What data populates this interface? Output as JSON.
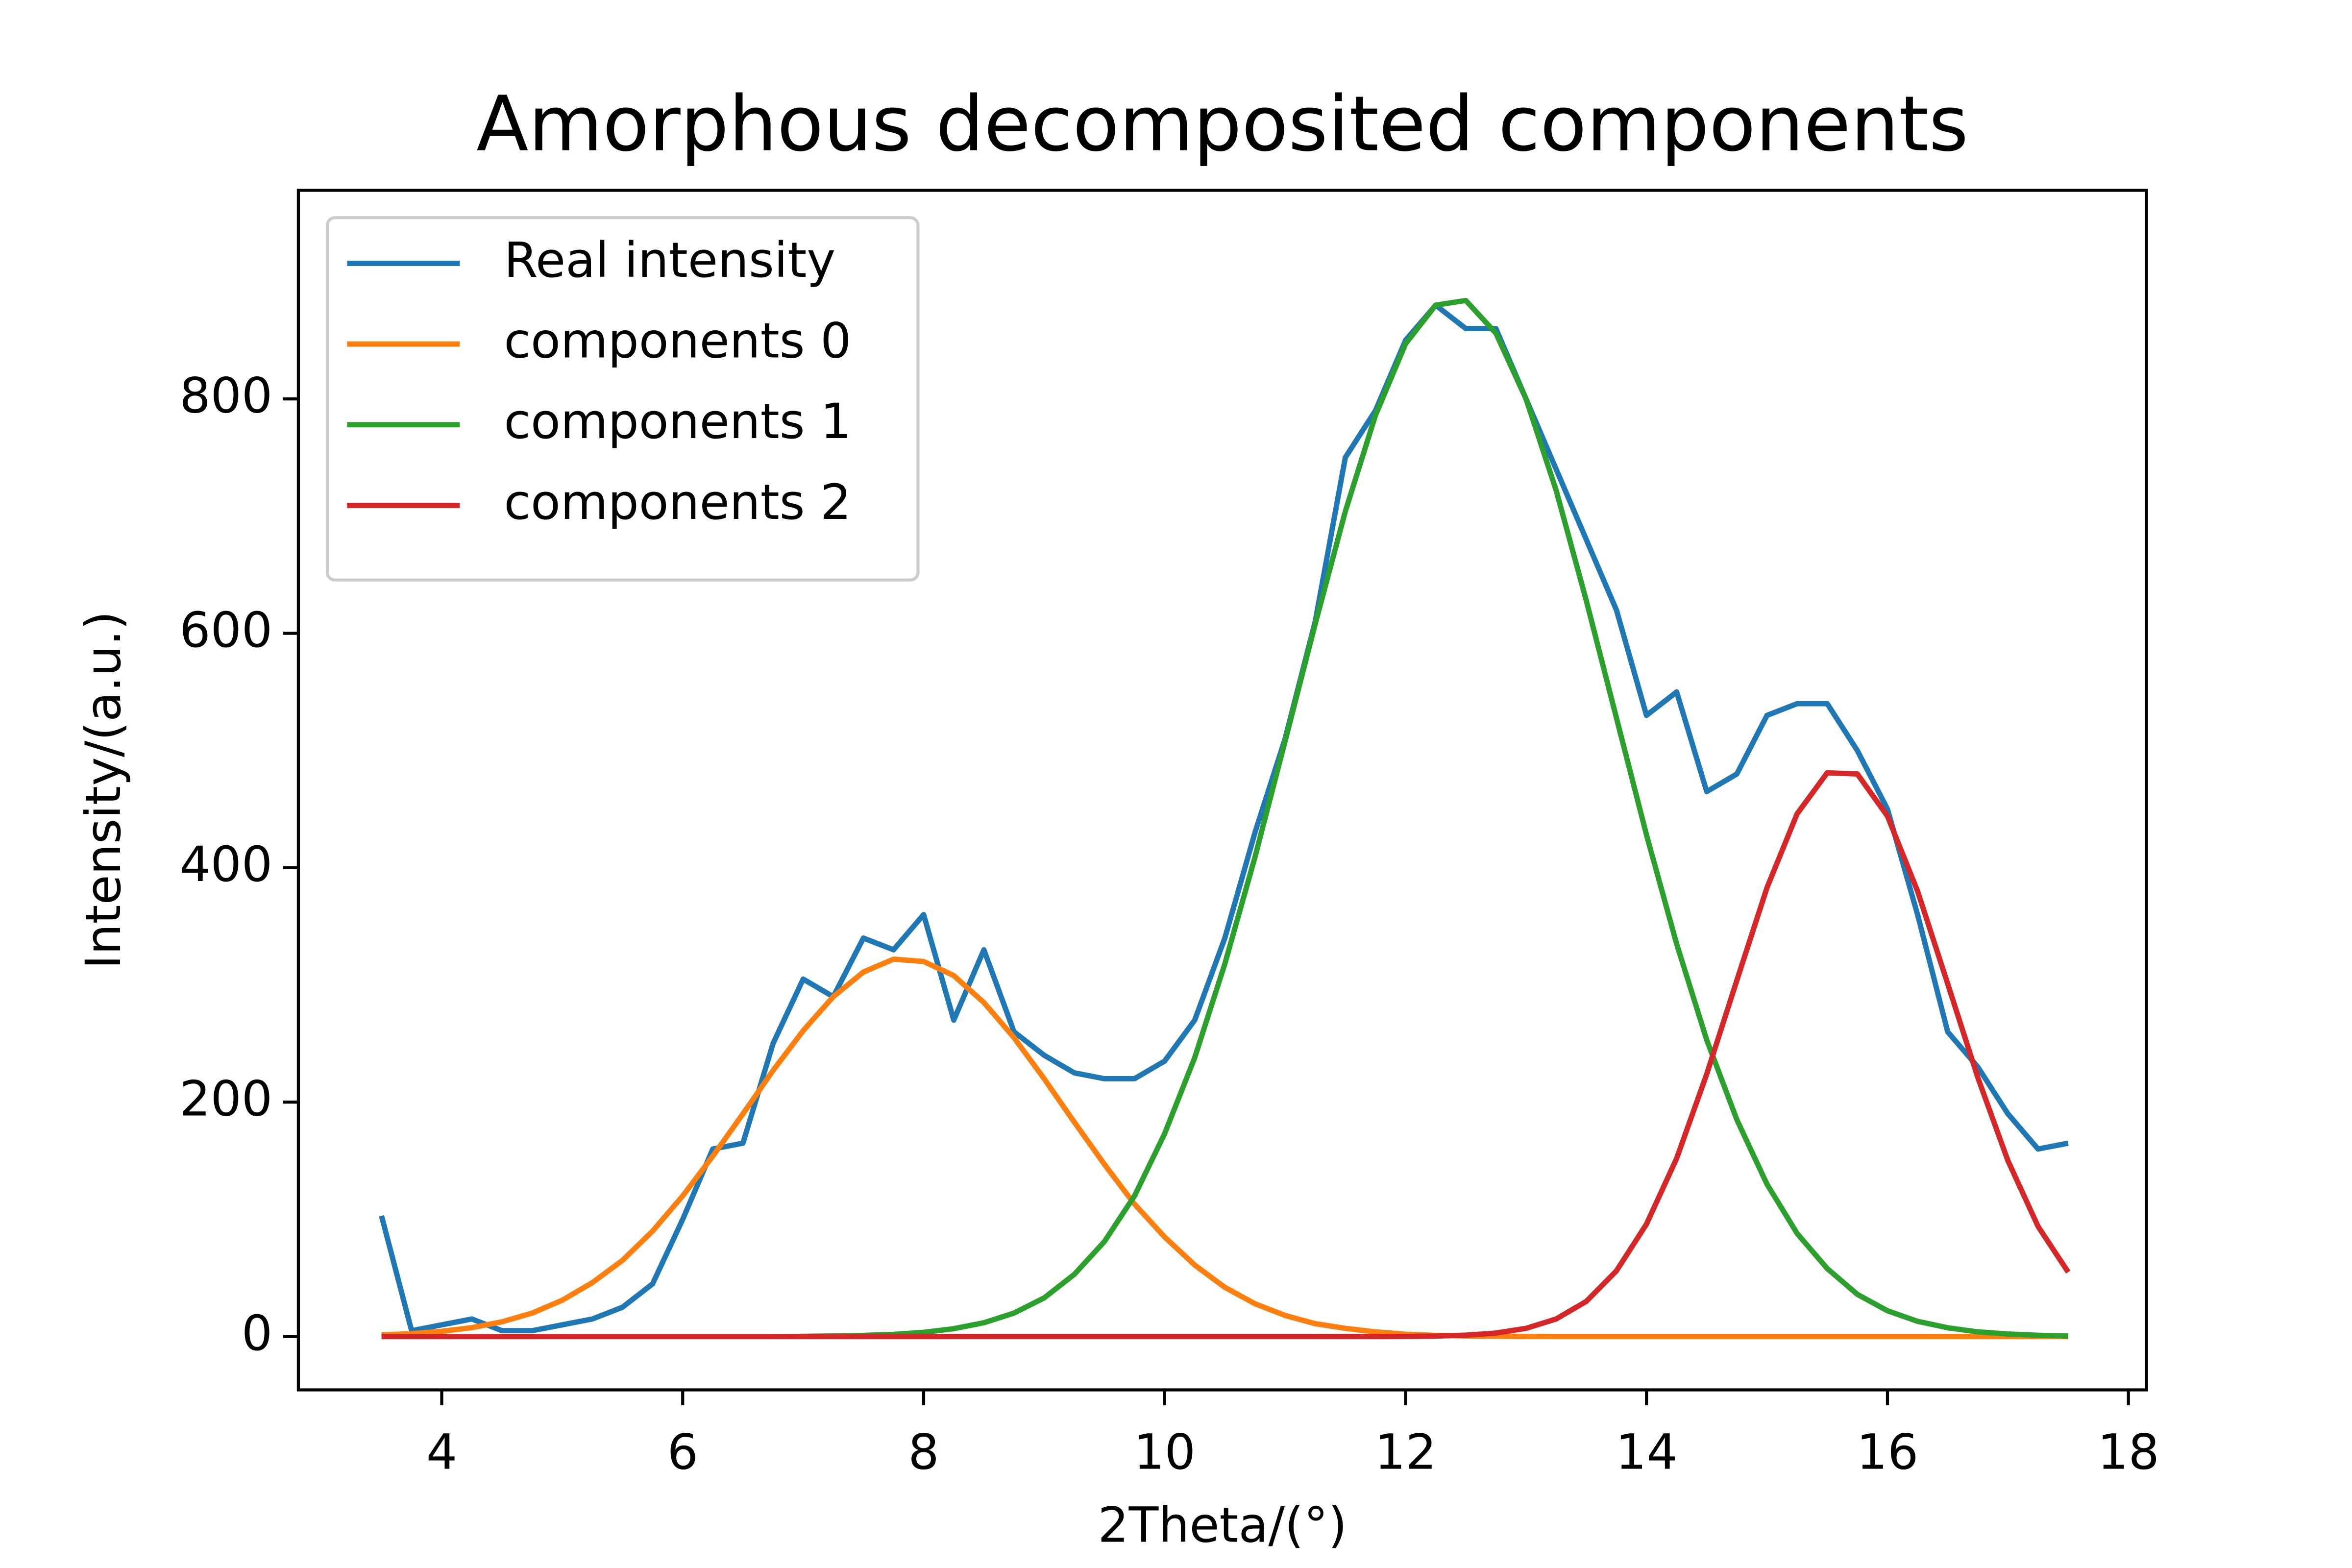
{
  "chart_data": {
    "type": "line",
    "title": "Amorphous decomposited components",
    "x_label": "2Theta/(°)",
    "y_label": "Intensity/(a.u.)",
    "x": [
      3.5,
      3.75,
      4,
      4.25,
      4.5,
      4.75,
      5,
      5.25,
      5.5,
      5.75,
      6,
      6.25,
      6.5,
      6.75,
      7,
      7.25,
      7.5,
      7.75,
      8,
      8.25,
      8.5,
      8.75,
      9,
      9.25,
      9.5,
      9.75,
      10,
      10.25,
      10.5,
      10.75,
      11,
      11.25,
      11.5,
      11.75,
      12,
      12.25,
      12.5,
      12.75,
      13,
      13.25,
      13.5,
      13.75,
      14,
      14.25,
      14.5,
      14.75,
      15,
      15.25,
      15.5,
      15.75,
      16,
      16.25,
      16.5,
      16.75,
      17,
      17.25,
      17.5
    ],
    "series": [
      {
        "name": "Real intensity",
        "color": "#1f77b4",
        "values": [
          103,
          5,
          10,
          15,
          5,
          5,
          10,
          15,
          25,
          45,
          100,
          160,
          165,
          250,
          305,
          290,
          340,
          330,
          360,
          270,
          330,
          260,
          240,
          225,
          220,
          220,
          235,
          270,
          340,
          430,
          510,
          610,
          750,
          790,
          850,
          880,
          860,
          860,
          800,
          740,
          680,
          620,
          530,
          550,
          465,
          480,
          530,
          540,
          540,
          500,
          450,
          360,
          260,
          230,
          190,
          160,
          165
        ]
      },
      {
        "name": "components 0",
        "color": "#ff7f0e",
        "values": [
          1.4,
          2.5,
          4.5,
          7.6,
          12.6,
          20,
          31,
          46,
          65,
          90,
          120,
          154,
          190,
          227,
          261,
          290,
          311,
          322,
          320,
          308,
          285,
          255,
          220,
          183,
          147,
          113,
          85,
          61,
          42,
          28,
          18,
          11,
          7,
          4,
          2,
          1,
          0.5,
          0.3,
          0.1,
          0,
          0,
          0,
          0,
          0,
          0,
          0,
          0,
          0,
          0,
          0,
          0,
          0,
          0,
          0,
          0,
          0,
          0
        ]
      },
      {
        "name": "components 1",
        "color": "#2ca02c",
        "values": [
          0,
          0,
          0,
          0,
          0,
          0,
          0,
          0,
          0,
          0,
          0,
          0,
          0,
          0,
          0.2,
          0.5,
          1,
          1.9,
          3.6,
          6.7,
          11.8,
          20,
          33,
          53,
          81,
          120,
          173,
          238,
          318,
          409,
          508,
          608,
          704,
          786,
          847,
          880,
          884,
          856,
          800,
          722,
          628,
          528,
          428,
          335,
          253,
          185,
          130,
          88,
          58,
          36,
          22,
          13,
          7.5,
          4,
          2.2,
          1.1,
          0.5
        ]
      },
      {
        "name": "components 2",
        "color": "#d62728",
        "values": [
          0,
          0,
          0,
          0,
          0,
          0,
          0,
          0,
          0,
          0,
          0,
          0,
          0,
          0,
          0,
          0,
          0,
          0,
          0,
          0,
          0,
          0,
          0,
          0,
          0,
          0,
          0,
          0,
          0,
          0,
          0,
          0,
          0,
          0,
          0.1,
          0.4,
          1.2,
          3,
          7,
          15,
          30,
          56,
          96,
          152,
          224,
          304,
          383,
          446,
          481,
          480,
          444,
          380,
          301,
          221,
          150,
          94,
          55
        ]
      }
    ],
    "xlim": [
      2.81,
      18.15
    ],
    "ylim": [
      -45.5,
      978
    ],
    "xticks": [
      4,
      6,
      8,
      10,
      12,
      14,
      16,
      18
    ],
    "yticks": [
      0,
      200,
      400,
      600,
      800
    ],
    "legend": "upper left",
    "grid": false
  }
}
